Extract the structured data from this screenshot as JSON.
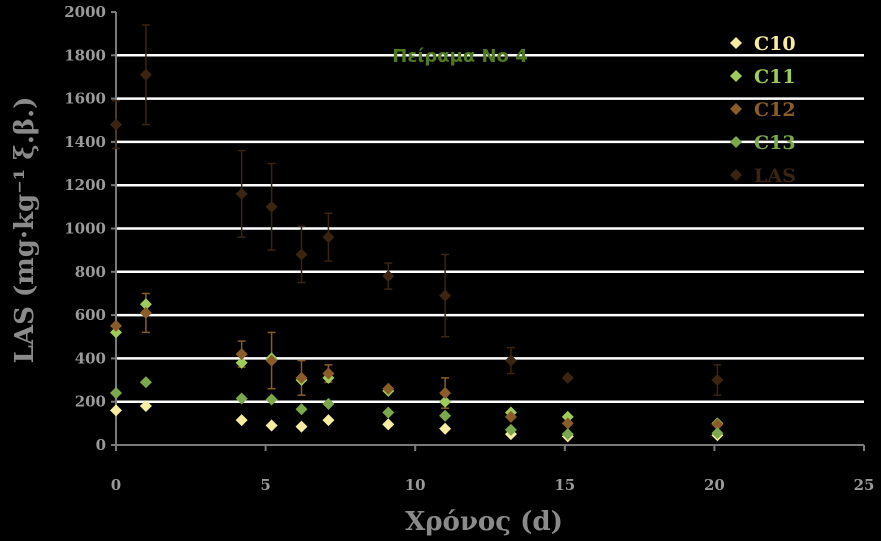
{
  "chart_data": {
    "type": "scatter",
    "title": "Πείραμα Νο 4",
    "xlabel": "Χρόνος (d)",
    "ylabel": "LAS (mg·kg⁻¹ ξ.β.)",
    "xlim": [
      0,
      25
    ],
    "ylim": [
      0,
      2000
    ],
    "x_ticks": [
      "0",
      "5",
      "10",
      "15",
      "20",
      "25"
    ],
    "y_ticks": [
      "0",
      "200",
      "400",
      "600",
      "800",
      "1000",
      "1200",
      "1400",
      "1600",
      "1800",
      "2000"
    ],
    "grid": true,
    "legend_position": "top-right",
    "colors": {
      "background": "#000000",
      "grid": "#ffffff",
      "tick_text": "#9a9a9a",
      "title": "#4f7a1f"
    },
    "series": [
      {
        "name": "C10",
        "color": "#f7eda0",
        "points": [
          {
            "x": 0,
            "y": 160
          },
          {
            "x": 1,
            "y": 180
          },
          {
            "x": 4.2,
            "y": 115
          },
          {
            "x": 5.2,
            "y": 90
          },
          {
            "x": 6.2,
            "y": 85
          },
          {
            "x": 7.1,
            "y": 115
          },
          {
            "x": 9.1,
            "y": 95
          },
          {
            "x": 11,
            "y": 75
          },
          {
            "x": 13.2,
            "y": 50
          },
          {
            "x": 15.1,
            "y": 40
          },
          {
            "x": 20.1,
            "y": 45
          }
        ]
      },
      {
        "name": "C11",
        "color": "#9fcb5a",
        "points": [
          {
            "x": 0,
            "y": 520
          },
          {
            "x": 1,
            "y": 650
          },
          {
            "x": 4.2,
            "y": 380
          },
          {
            "x": 5.2,
            "y": 400
          },
          {
            "x": 6.2,
            "y": 300
          },
          {
            "x": 7.1,
            "y": 310
          },
          {
            "x": 9.1,
            "y": 250
          },
          {
            "x": 11,
            "y": 200
          },
          {
            "x": 13.2,
            "y": 150
          },
          {
            "x": 15.1,
            "y": 130
          },
          {
            "x": 20.1,
            "y": 100
          }
        ]
      },
      {
        "name": "C12",
        "color": "#8a5c28",
        "points": [
          {
            "x": 0,
            "y": 550
          },
          {
            "x": 1,
            "y": 610,
            "err": 90
          },
          {
            "x": 4.2,
            "y": 420,
            "err": 60
          },
          {
            "x": 5.2,
            "y": 390,
            "err": 130
          },
          {
            "x": 6.2,
            "y": 310,
            "err": 80
          },
          {
            "x": 7.1,
            "y": 330,
            "err": 40
          },
          {
            "x": 9.1,
            "y": 260
          },
          {
            "x": 11,
            "y": 240,
            "err": 70
          },
          {
            "x": 13.2,
            "y": 130
          },
          {
            "x": 15.1,
            "y": 100
          },
          {
            "x": 20.1,
            "y": 95
          }
        ]
      },
      {
        "name": "C13",
        "color": "#7aa84a",
        "points": [
          {
            "x": 0,
            "y": 240
          },
          {
            "x": 1,
            "y": 290
          },
          {
            "x": 4.2,
            "y": 215
          },
          {
            "x": 5.2,
            "y": 210
          },
          {
            "x": 6.2,
            "y": 165
          },
          {
            "x": 7.1,
            "y": 190
          },
          {
            "x": 9.1,
            "y": 150
          },
          {
            "x": 11,
            "y": 135
          },
          {
            "x": 13.2,
            "y": 70
          },
          {
            "x": 15.1,
            "y": 50
          },
          {
            "x": 20.1,
            "y": 55
          }
        ]
      },
      {
        "name": "LAS",
        "color": "#3b2410",
        "points": [
          {
            "x": 0,
            "y": 1480,
            "err": 110
          },
          {
            "x": 1,
            "y": 1710,
            "err": 230
          },
          {
            "x": 4.2,
            "y": 1160,
            "err": 200
          },
          {
            "x": 5.2,
            "y": 1100,
            "err": 200
          },
          {
            "x": 6.2,
            "y": 880,
            "err": 130
          },
          {
            "x": 7.1,
            "y": 960,
            "err": 110
          },
          {
            "x": 9.1,
            "y": 780,
            "err": 60
          },
          {
            "x": 11,
            "y": 690,
            "err": 190
          },
          {
            "x": 13.2,
            "y": 390,
            "err": 60
          },
          {
            "x": 15.1,
            "y": 310
          },
          {
            "x": 20.1,
            "y": 300,
            "err": 70
          }
        ]
      }
    ]
  }
}
